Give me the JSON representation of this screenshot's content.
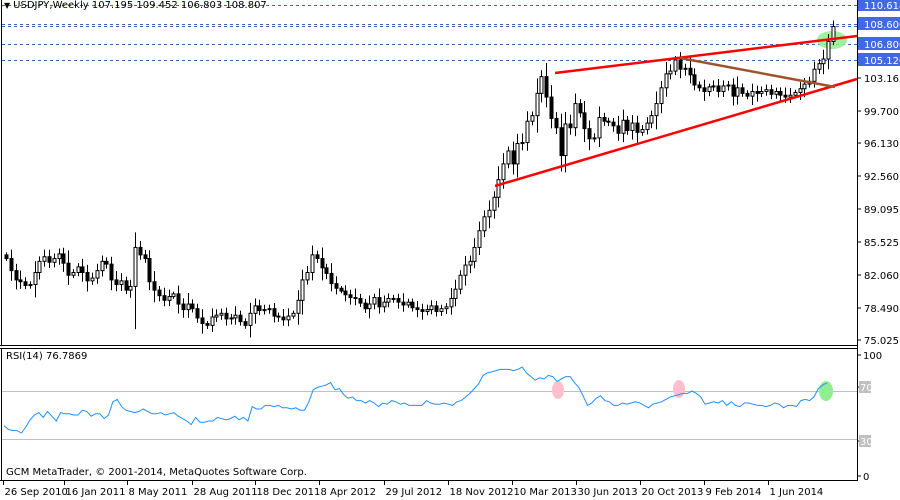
{
  "header": {
    "symbol": "USDJPY",
    "timeframe": "Weekly",
    "title": "USDJPY,Weekly  107.195 109.452 106.803 108.807",
    "open": "107.195",
    "high": "109.452",
    "low": "106.803",
    "close": "108.807"
  },
  "rsi_panel": {
    "title": "RSI(14) 76.7869",
    "levels": [
      "100",
      "70",
      "30",
      "0"
    ]
  },
  "footer": {
    "copyright": "GCM MetaTrader, © 2001-2014, MetaQuotes Software Corp."
  },
  "colors": {
    "bull_body": "#ffffff",
    "bear_body": "#000000",
    "candle_outline": "#000000",
    "trendline_red": "#ff0000",
    "trendline_brown": "#a0522d",
    "hline_blue": "#3c64c8",
    "price_label_bg": "#4169e1",
    "rsi_line": "#1e90ff",
    "rsi_level": "#c0c0c0",
    "highlight_green": "#90ee90",
    "highlight_pink": "#ffc0cb"
  },
  "chart_data": [
    {
      "type": "candlestick",
      "title": "USDJPY,Weekly",
      "ylabel": "Price",
      "ylim": [
        75.025,
        110.618
      ],
      "price_axis_ticks": [
        "110.618",
        "108.600",
        "106.800",
        "105.120",
        "103.165",
        "99.700",
        "96.130",
        "92.560",
        "89.095",
        "85.525",
        "82.060",
        "78.490",
        "75.025"
      ],
      "highlighted_levels": [
        "110.618",
        "108.600",
        "106.800",
        "105.120"
      ],
      "x_tick_labels": [
        "26 Sep 2010",
        "16 Jan 2011",
        "8 May 2011",
        "28 Aug 2011",
        "18 Dec 2011",
        "8 Apr 2012",
        "29 Jul 2012",
        "18 Nov 2012",
        "10 Mar 2013",
        "30 Jun 2013",
        "20 Oct 2013",
        "9 Feb 2014",
        "1 Jun 2014"
      ],
      "last_bar": {
        "open": 107.195,
        "high": 109.452,
        "low": 106.803,
        "close": 108.807
      },
      "closes_approx": [
        83.8,
        82.5,
        81.5,
        81.3,
        80.9,
        81.0,
        82.3,
        83.5,
        84.0,
        83.4,
        83.8,
        84.3,
        83.3,
        82.0,
        82.3,
        82.9,
        82.3,
        81.4,
        81.7,
        82.5,
        83.5,
        83.2,
        81.5,
        81.0,
        81.4,
        80.4,
        80.8,
        85.0,
        84.2,
        83.8,
        81.3,
        80.4,
        79.8,
        79.3,
        79.7,
        80.0,
        78.9,
        78.3,
        78.9,
        78.4,
        77.4,
        76.8,
        76.6,
        77.5,
        77.7,
        77.9,
        77.3,
        77.4,
        77.7,
        77.0,
        76.6,
        77.9,
        78.7,
        78.2,
        78.3,
        78.4,
        77.6,
        77.5,
        77.2,
        77.6,
        77.9,
        79.3,
        81.5,
        82.3,
        84.2,
        83.8,
        82.8,
        82.2,
        81.1,
        80.6,
        80.3,
        79.9,
        79.6,
        79.5,
        79.0,
        78.4,
        78.9,
        79.6,
        78.6,
        79.1,
        79.5,
        79.5,
        79.1,
        78.8,
        79.1,
        78.5,
        78.3,
        78.1,
        78.3,
        78.7,
        78.1,
        78.4,
        78.6,
        79.5,
        80.5,
        82.0,
        83.1,
        83.5,
        85.0,
        86.8,
        88.3,
        89.0,
        90.4,
        92.3,
        94.0,
        95.4,
        94.0,
        96.2,
        96.3,
        98.6,
        99.2,
        101.6,
        103.4,
        101.2,
        98.9,
        97.9,
        94.9,
        98.3,
        97.9,
        100.5,
        99.5,
        97.8,
        96.7,
        96.8,
        99.0,
        98.6,
        98.5,
        98.1,
        97.3,
        98.7,
        97.6,
        98.4,
        97.4,
        97.7,
        98.4,
        99.2,
        100.5,
        102.2,
        103.7,
        104.0,
        105.2,
        104.2,
        104.3,
        103.6,
        102.5,
        102.2,
        101.8,
        102.3,
        102.4,
        101.8,
        102.4,
        102.5,
        101.3,
        102.2,
        101.6,
        101.3,
        101.8,
        101.6,
        101.8,
        102.0,
        101.5,
        101.8,
        101.4,
        101.2,
        101.4,
        101.7,
        102.1,
        102.6,
        102.9,
        104.2,
        104.8,
        105.3,
        107.2,
        108.8
      ]
    },
    {
      "type": "line",
      "title": "RSI(14)",
      "last_value": 76.7869,
      "ylim": [
        0,
        100
      ],
      "levels": [
        30,
        70
      ],
      "values_approx": [
        41,
        38,
        37,
        37,
        35,
        40,
        46,
        50,
        52,
        48,
        53,
        49,
        45,
        52,
        51,
        51,
        50,
        50,
        54,
        53,
        49,
        51,
        51,
        47,
        50,
        61,
        63,
        57,
        54,
        53,
        52,
        53,
        55,
        53,
        51,
        51,
        52,
        50,
        51,
        52,
        49,
        47,
        45,
        42,
        48,
        44,
        44,
        45,
        45,
        48,
        47,
        46,
        47,
        49,
        46,
        48,
        45,
        57,
        55,
        55,
        58,
        58,
        57,
        58,
        56,
        56,
        55,
        56,
        54,
        54,
        61,
        71,
        73,
        74,
        75,
        77,
        71,
        72,
        67,
        64,
        65,
        62,
        62,
        60,
        62,
        60,
        57,
        60,
        59,
        62,
        61,
        59,
        60,
        58,
        58,
        58,
        58,
        62,
        60,
        59,
        59,
        60,
        59,
        58,
        61,
        62,
        65,
        68,
        72,
        76,
        83,
        85,
        86,
        87,
        88,
        88,
        88,
        87,
        88,
        90,
        85,
        82,
        79,
        81,
        80,
        83,
        82,
        78,
        80,
        82,
        82,
        77,
        73,
        66,
        58,
        60,
        64,
        66,
        62,
        61,
        58,
        58,
        60,
        59,
        60,
        61,
        60,
        58,
        56,
        59,
        60,
        61,
        63,
        65,
        66,
        67,
        68,
        68,
        70,
        68,
        65,
        59,
        60,
        61,
        60,
        62,
        58,
        61,
        58,
        57,
        60,
        60,
        59,
        58,
        58,
        57,
        58,
        60,
        59,
        56,
        58,
        58,
        57,
        62,
        63,
        62,
        65,
        72,
        75,
        76.8
      ]
    }
  ]
}
